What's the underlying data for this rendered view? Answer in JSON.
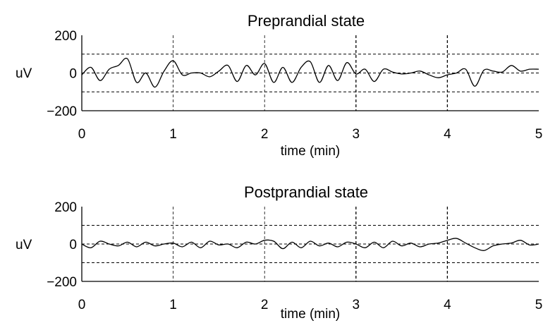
{
  "chart_data": [
    {
      "type": "line",
      "title": "Preprandial state",
      "xlabel": "time (min)",
      "ylabel": "uV",
      "xlim": [
        0,
        5
      ],
      "ylim": [
        -200,
        200
      ],
      "x_ticks": [
        "0",
        "1",
        "2",
        "3",
        "4",
        "5"
      ],
      "y_ticks": [
        "200",
        "0",
        "−200"
      ],
      "reference_lines_y": [
        100,
        0,
        -100
      ],
      "vertical_grid_x": [
        1,
        2,
        3,
        4
      ],
      "grid": "dashed",
      "series": [
        {
          "x": [
            0,
            0.1,
            0.2,
            0.3,
            0.4,
            0.5,
            0.6,
            0.7,
            0.8,
            0.9,
            1.0,
            1.1,
            1.2,
            1.3,
            1.4,
            1.5,
            1.6,
            1.7,
            1.8,
            1.9,
            2.0,
            2.1,
            2.2,
            2.3,
            2.4,
            2.5,
            2.6,
            2.7,
            2.8,
            2.9,
            3.0,
            3.1,
            3.2,
            3.3,
            3.4,
            3.5,
            3.6,
            3.7,
            3.8,
            3.9,
            4.0,
            4.1,
            4.2,
            4.3,
            4.4,
            4.5,
            4.6,
            4.7,
            4.8,
            4.9,
            5.0
          ],
          "values": [
            -10,
            30,
            -40,
            20,
            40,
            75,
            -50,
            0,
            -75,
            10,
            65,
            -10,
            0,
            0,
            -20,
            10,
            40,
            -45,
            40,
            -10,
            50,
            -50,
            30,
            -50,
            30,
            60,
            -50,
            40,
            -40,
            55,
            -5,
            20,
            -45,
            20,
            5,
            -5,
            0,
            10,
            -10,
            -25,
            -10,
            0,
            20,
            -70,
            15,
            10,
            5,
            40,
            10,
            20,
            20
          ]
        }
      ]
    },
    {
      "type": "line",
      "title": "Postprandial state",
      "xlabel": "time (min)",
      "ylabel": "uV",
      "xlim": [
        0,
        5
      ],
      "ylim": [
        -200,
        200
      ],
      "x_ticks": [
        "0",
        "1",
        "2",
        "3",
        "4",
        "5"
      ],
      "y_ticks": [
        "200",
        "0",
        "−200"
      ],
      "reference_lines_y": [
        100,
        0,
        -100
      ],
      "vertical_grid_x": [
        1,
        2,
        3,
        4
      ],
      "grid": "dashed",
      "series": [
        {
          "x": [
            0,
            0.1,
            0.2,
            0.3,
            0.4,
            0.5,
            0.6,
            0.7,
            0.8,
            0.9,
            1.0,
            1.1,
            1.2,
            1.3,
            1.4,
            1.5,
            1.6,
            1.7,
            1.8,
            1.9,
            2.0,
            2.1,
            2.2,
            2.3,
            2.4,
            2.5,
            2.6,
            2.7,
            2.8,
            2.9,
            3.0,
            3.1,
            3.2,
            3.3,
            3.4,
            3.5,
            3.6,
            3.7,
            3.8,
            3.9,
            4.0,
            4.1,
            4.2,
            4.3,
            4.4,
            4.5,
            4.6,
            4.7,
            4.8,
            4.9,
            5.0
          ],
          "values": [
            0,
            -20,
            15,
            0,
            -10,
            10,
            -15,
            10,
            -10,
            0,
            5,
            -15,
            10,
            -20,
            15,
            -5,
            0,
            -20,
            10,
            0,
            20,
            15,
            -25,
            10,
            -20,
            15,
            -10,
            5,
            -15,
            10,
            0,
            -20,
            10,
            -20,
            15,
            -10,
            5,
            -15,
            0,
            5,
            20,
            30,
            5,
            -20,
            -35,
            -10,
            0,
            5,
            20,
            -5,
            0
          ]
        }
      ]
    }
  ]
}
